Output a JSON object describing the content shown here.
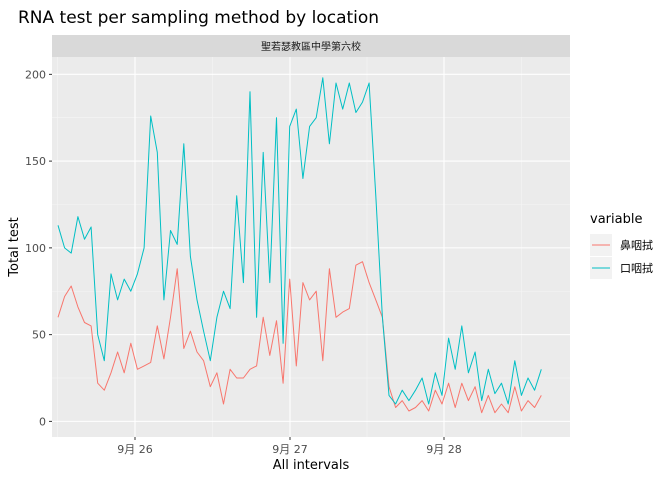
{
  "chart_data": {
    "type": "line",
    "title": "RNA test per sampling method by location",
    "facet_label": "聖若瑟教區中學第六校",
    "xlabel": "All intervals",
    "ylabel": "Total test",
    "x_ticks": [
      "9月 26",
      "9月 27",
      "9月 28"
    ],
    "y_ticks": [
      0,
      50,
      100,
      150,
      200
    ],
    "ylim": [
      -9,
      210
    ],
    "grid": true,
    "legend": {
      "title": "variable",
      "position": "right"
    },
    "x_unit": "hours from first interval",
    "series": [
      {
        "name": "鼻咽拭",
        "color": "#F8766D",
        "x": [
          0,
          1,
          2,
          3,
          4,
          5,
          6,
          7,
          8,
          9,
          10,
          11,
          12,
          13,
          14,
          15,
          16,
          17,
          18,
          19,
          20,
          21,
          22,
          23,
          24,
          25,
          26,
          27,
          28,
          29,
          30,
          31,
          32,
          33,
          34,
          35,
          36,
          37,
          38,
          39,
          40,
          41,
          42,
          43,
          44,
          45,
          46,
          47,
          48,
          49,
          50,
          51,
          52,
          53,
          54,
          55,
          56,
          57,
          58,
          59,
          60,
          61,
          62,
          63,
          64,
          65,
          66,
          67,
          68,
          69,
          70,
          71,
          72,
          73
        ],
        "values": [
          60,
          72,
          78,
          66,
          57,
          55,
          22,
          18,
          28,
          40,
          28,
          45,
          30,
          32,
          34,
          55,
          36,
          60,
          88,
          42,
          52,
          40,
          35,
          20,
          28,
          10,
          30,
          25,
          25,
          30,
          32,
          60,
          38,
          58,
          22,
          82,
          32,
          80,
          70,
          75,
          35,
          88,
          60,
          63,
          65,
          90,
          92,
          80,
          70,
          60,
          20,
          8,
          12,
          6,
          8,
          12,
          6,
          18,
          10,
          22,
          8,
          22,
          12,
          20,
          5,
          15,
          5,
          10,
          5,
          20,
          6,
          12,
          8,
          15
        ]
      },
      {
        "name": "口咽拭",
        "color": "#00BFC4",
        "x": [
          0,
          1,
          2,
          3,
          4,
          5,
          6,
          7,
          8,
          9,
          10,
          11,
          12,
          13,
          14,
          15,
          16,
          17,
          18,
          19,
          20,
          21,
          22,
          23,
          24,
          25,
          26,
          27,
          28,
          29,
          30,
          31,
          32,
          33,
          34,
          35,
          36,
          37,
          38,
          39,
          40,
          41,
          42,
          43,
          44,
          45,
          46,
          47,
          48,
          49,
          50,
          51,
          52,
          53,
          54,
          55,
          56,
          57,
          58,
          59,
          60,
          61,
          62,
          63,
          64,
          65,
          66,
          67,
          68,
          69,
          70,
          71,
          72,
          73
        ],
        "values": [
          113,
          100,
          97,
          118,
          105,
          112,
          50,
          35,
          85,
          70,
          82,
          75,
          85,
          100,
          176,
          155,
          70,
          110,
          102,
          160,
          95,
          70,
          52,
          35,
          60,
          75,
          65,
          130,
          80,
          190,
          60,
          155,
          80,
          175,
          45,
          170,
          180,
          140,
          170,
          175,
          198,
          160,
          195,
          180,
          195,
          178,
          184,
          195,
          130,
          60,
          15,
          10,
          18,
          12,
          18,
          25,
          10,
          28,
          15,
          48,
          30,
          55,
          28,
          40,
          12,
          30,
          16,
          22,
          10,
          35,
          15,
          25,
          18,
          30
        ]
      }
    ]
  }
}
